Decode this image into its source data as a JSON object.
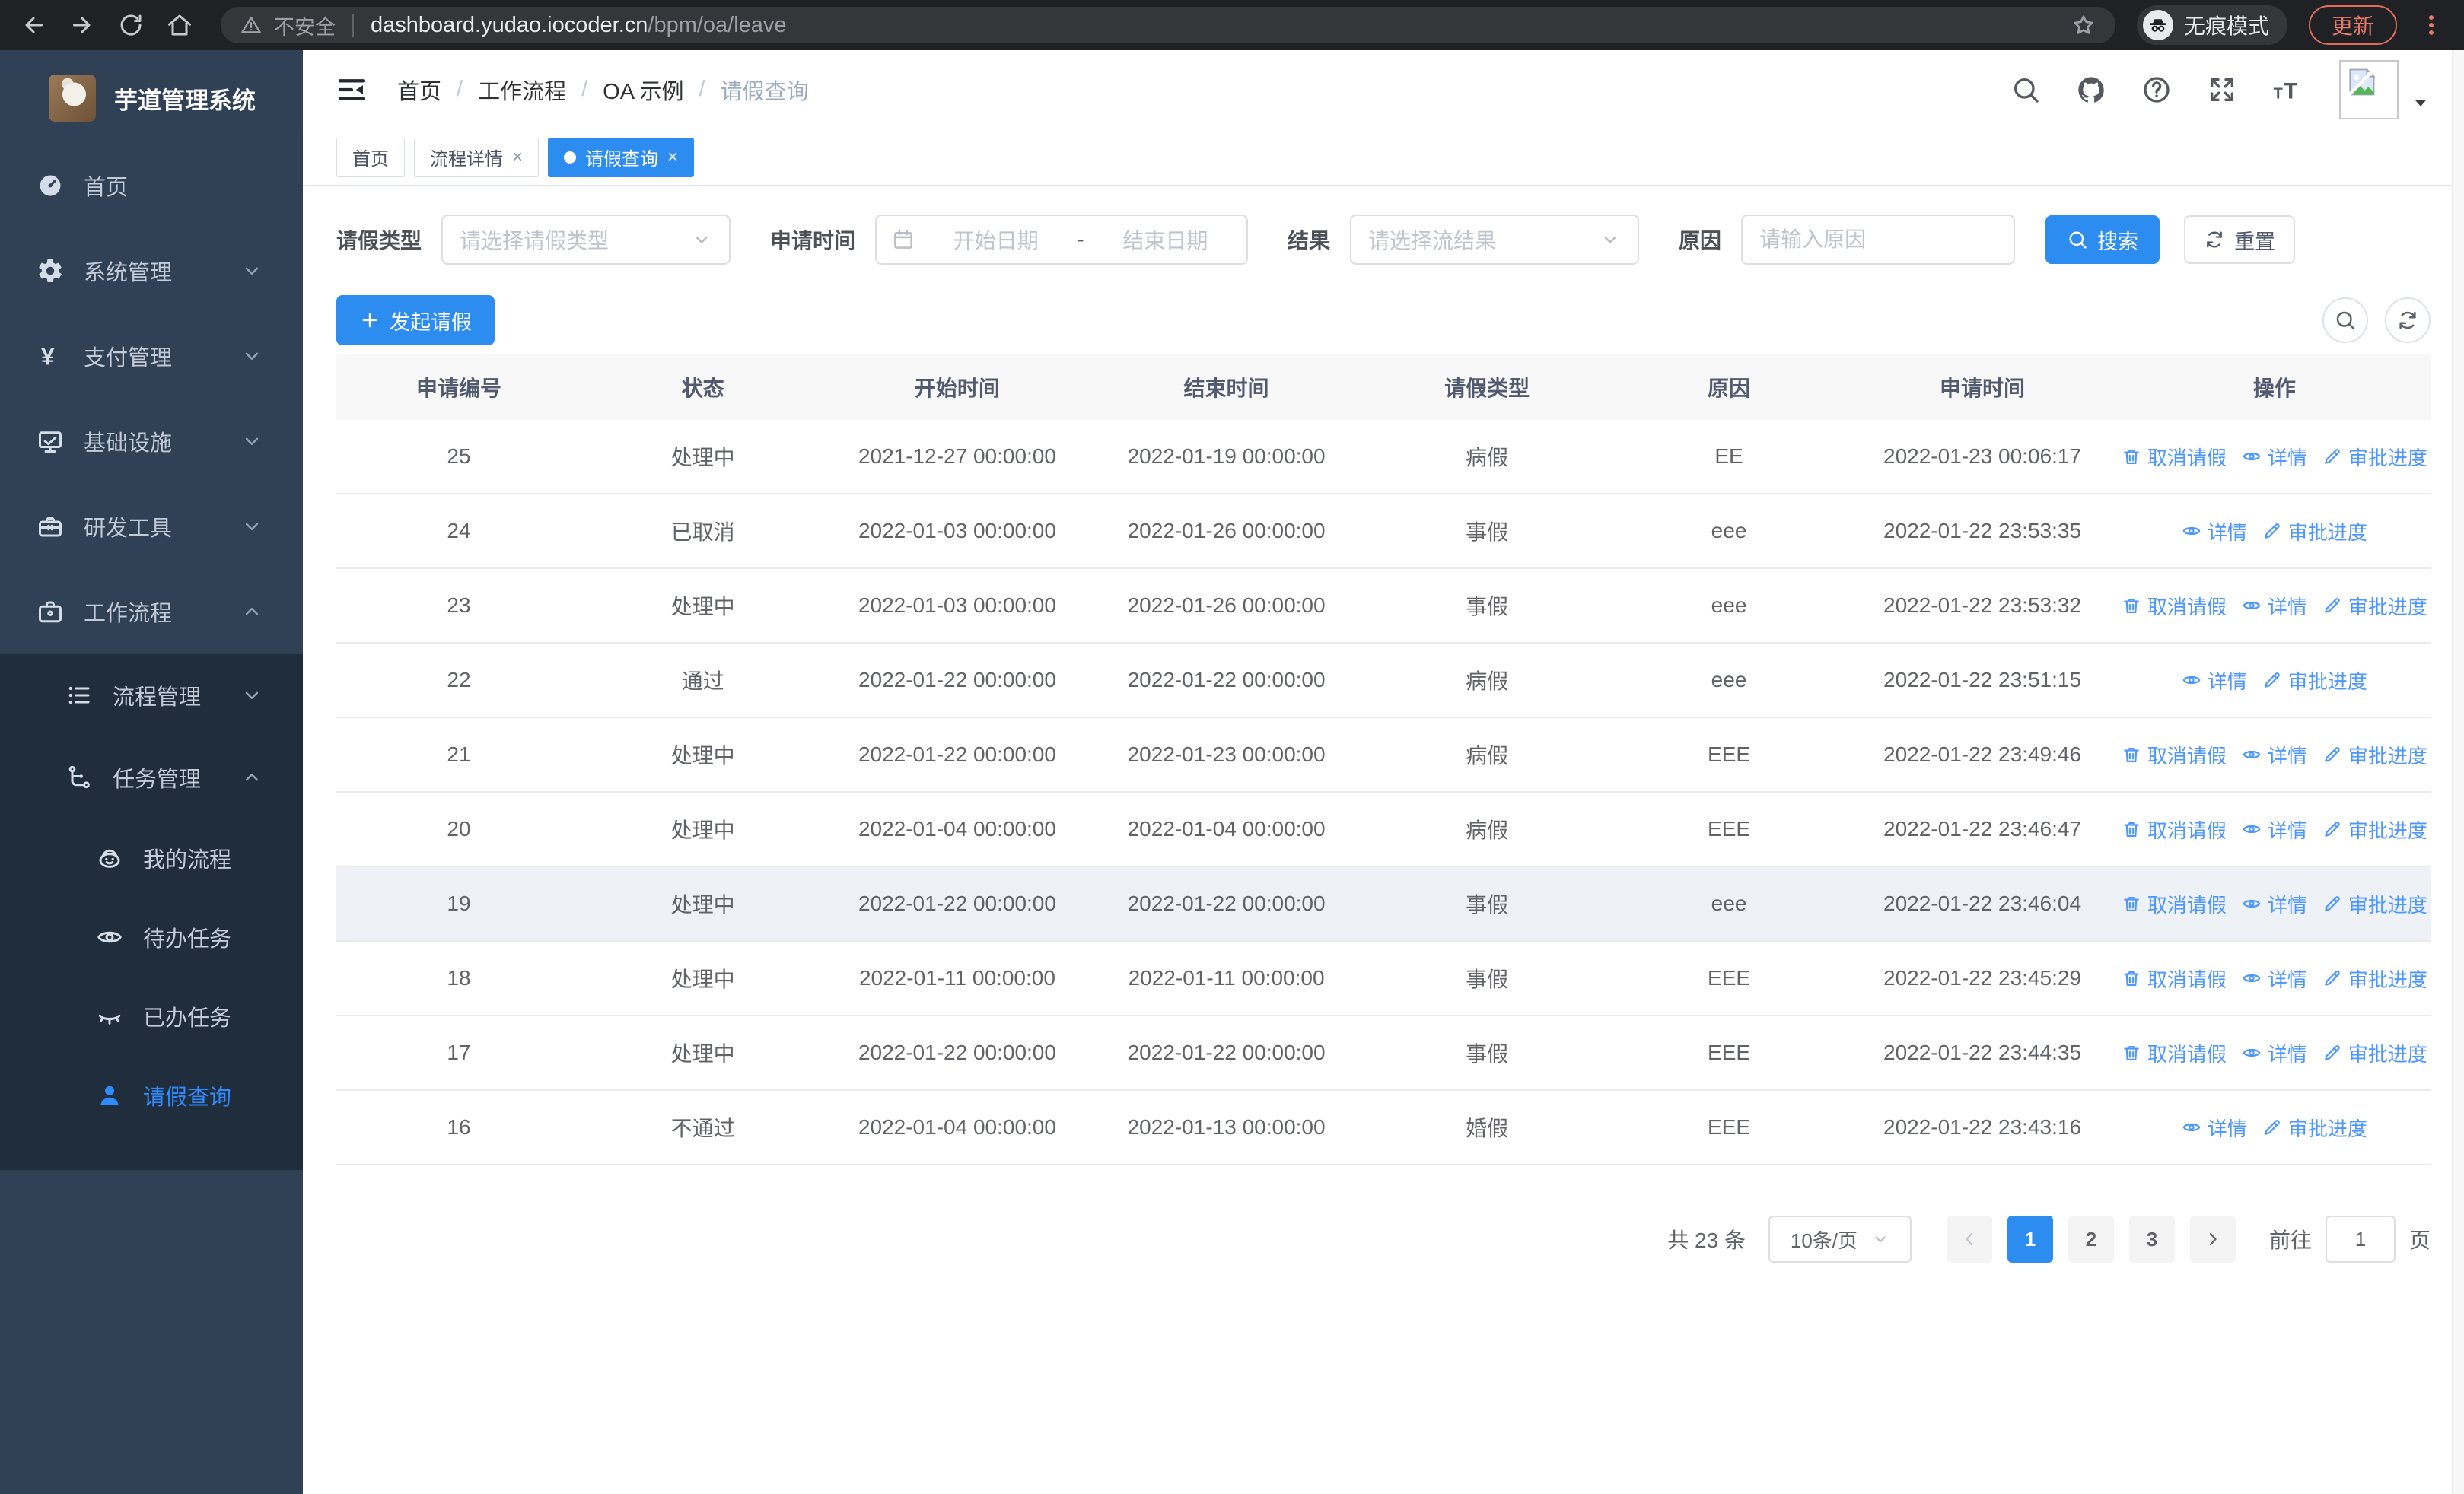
{
  "browser": {
    "security_label": "不安全",
    "url_host": "dashboard.yudao.iocoder.cn",
    "url_path": "/bpm/oa/leave",
    "incognito_label": "无痕模式",
    "update_label": "更新"
  },
  "sidebar": {
    "title": "芋道管理系统",
    "items": [
      {
        "label": "首页",
        "icon": "dashboard-icon",
        "level": 1
      },
      {
        "label": "系统管理",
        "icon": "gear-icon",
        "level": 1,
        "chevron": "down"
      },
      {
        "label": "支付管理",
        "icon": "yen-icon",
        "level": 1,
        "chevron": "down"
      },
      {
        "label": "基础设施",
        "icon": "monitor-icon",
        "level": 1,
        "chevron": "down"
      },
      {
        "label": "研发工具",
        "icon": "toolbox-icon",
        "level": 1,
        "chevron": "down"
      },
      {
        "label": "工作流程",
        "icon": "briefcase-icon",
        "level": 1,
        "chevron": "up"
      },
      {
        "label": "流程管理",
        "icon": "list-icon",
        "level": 2,
        "chevron": "down",
        "sub": true
      },
      {
        "label": "任务管理",
        "icon": "tree-icon",
        "level": 2,
        "chevron": "up",
        "sub": true
      },
      {
        "label": "我的流程",
        "icon": "robot-icon",
        "level": 3,
        "sub": true
      },
      {
        "label": "待办任务",
        "icon": "eye-open-icon",
        "level": 3,
        "sub": true
      },
      {
        "label": "已办任务",
        "icon": "eye-closed-icon",
        "level": 3,
        "sub": true
      },
      {
        "label": "请假查询",
        "icon": "user-icon",
        "level": 3,
        "sub": true,
        "active": true
      }
    ]
  },
  "header": {
    "breadcrumb": [
      "首页",
      "工作流程",
      "OA 示例",
      "请假查询"
    ],
    "icons": [
      "search-icon",
      "github-icon",
      "help-icon",
      "fullscreen-icon",
      "font-size-icon"
    ]
  },
  "tabs": [
    {
      "label": "首页"
    },
    {
      "label": "流程详情",
      "closable": true
    },
    {
      "label": "请假查询",
      "closable": true,
      "active": true
    }
  ],
  "filters": {
    "leave_type_label": "请假类型",
    "leave_type_placeholder": "请选择请假类型",
    "apply_time_label": "申请时间",
    "start_placeholder": "开始日期",
    "range_separator": "-",
    "end_placeholder": "结束日期",
    "result_label": "结果",
    "result_placeholder": "请选择流结果",
    "reason_label": "原因",
    "reason_placeholder": "请输入原因",
    "search_label": "搜索",
    "reset_label": "重置"
  },
  "toolbar": {
    "create_label": "发起请假"
  },
  "table": {
    "headers": [
      "申请编号",
      "状态",
      "开始时间",
      "结束时间",
      "请假类型",
      "原因",
      "申请时间",
      "操作"
    ],
    "action_defs": {
      "cancel": {
        "label": "取消请假",
        "icon": "trash-icon"
      },
      "detail": {
        "label": "详情",
        "icon": "view-icon"
      },
      "progress": {
        "label": "审批进度",
        "icon": "edit-icon"
      }
    },
    "rows": [
      {
        "id": "25",
        "status": "处理中",
        "start": "2021-12-27 00:00:00",
        "end": "2022-01-19 00:00:00",
        "type": "病假",
        "reason": "EE",
        "applied": "2022-01-23 00:06:17",
        "actions": [
          "cancel",
          "detail",
          "progress"
        ]
      },
      {
        "id": "24",
        "status": "已取消",
        "start": "2022-01-03 00:00:00",
        "end": "2022-01-26 00:00:00",
        "type": "事假",
        "reason": "eee",
        "applied": "2022-01-22 23:53:35",
        "actions": [
          "detail",
          "progress"
        ]
      },
      {
        "id": "23",
        "status": "处理中",
        "start": "2022-01-03 00:00:00",
        "end": "2022-01-26 00:00:00",
        "type": "事假",
        "reason": "eee",
        "applied": "2022-01-22 23:53:32",
        "actions": [
          "cancel",
          "detail",
          "progress"
        ]
      },
      {
        "id": "22",
        "status": "通过",
        "start": "2022-01-22 00:00:00",
        "end": "2022-01-22 00:00:00",
        "type": "病假",
        "reason": "eee",
        "applied": "2022-01-22 23:51:15",
        "actions": [
          "detail",
          "progress"
        ]
      },
      {
        "id": "21",
        "status": "处理中",
        "start": "2022-01-22 00:00:00",
        "end": "2022-01-23 00:00:00",
        "type": "病假",
        "reason": "EEE",
        "applied": "2022-01-22 23:49:46",
        "actions": [
          "cancel",
          "detail",
          "progress"
        ]
      },
      {
        "id": "20",
        "status": "处理中",
        "start": "2022-01-04 00:00:00",
        "end": "2022-01-04 00:00:00",
        "type": "病假",
        "reason": "EEE",
        "applied": "2022-01-22 23:46:47",
        "actions": [
          "cancel",
          "detail",
          "progress"
        ]
      },
      {
        "id": "19",
        "status": "处理中",
        "start": "2022-01-22 00:00:00",
        "end": "2022-01-22 00:00:00",
        "type": "事假",
        "reason": "eee",
        "applied": "2022-01-22 23:46:04",
        "actions": [
          "cancel",
          "detail",
          "progress"
        ],
        "highlight": true
      },
      {
        "id": "18",
        "status": "处理中",
        "start": "2022-01-11 00:00:00",
        "end": "2022-01-11 00:00:00",
        "type": "事假",
        "reason": "EEE",
        "applied": "2022-01-22 23:45:29",
        "actions": [
          "cancel",
          "detail",
          "progress"
        ]
      },
      {
        "id": "17",
        "status": "处理中",
        "start": "2022-01-22 00:00:00",
        "end": "2022-01-22 00:00:00",
        "type": "事假",
        "reason": "EEE",
        "applied": "2022-01-22 23:44:35",
        "actions": [
          "cancel",
          "detail",
          "progress"
        ]
      },
      {
        "id": "16",
        "status": "不通过",
        "start": "2022-01-04 00:00:00",
        "end": "2022-01-13 00:00:00",
        "type": "婚假",
        "reason": "EEE",
        "applied": "2022-01-22 23:43:16",
        "actions": [
          "detail",
          "progress"
        ]
      }
    ]
  },
  "pagination": {
    "total": "共 23 条",
    "page_size": "10条/页",
    "pages": [
      "1",
      "2",
      "3"
    ],
    "active_page": "1",
    "goto_label": "前往",
    "goto_value": "1",
    "goto_suffix": "页"
  },
  "colors": {
    "primary": "#2d8cf0",
    "link": "#4b96ff",
    "sidebar_bg": "#304156",
    "submenu_bg": "#1f2d3d"
  }
}
